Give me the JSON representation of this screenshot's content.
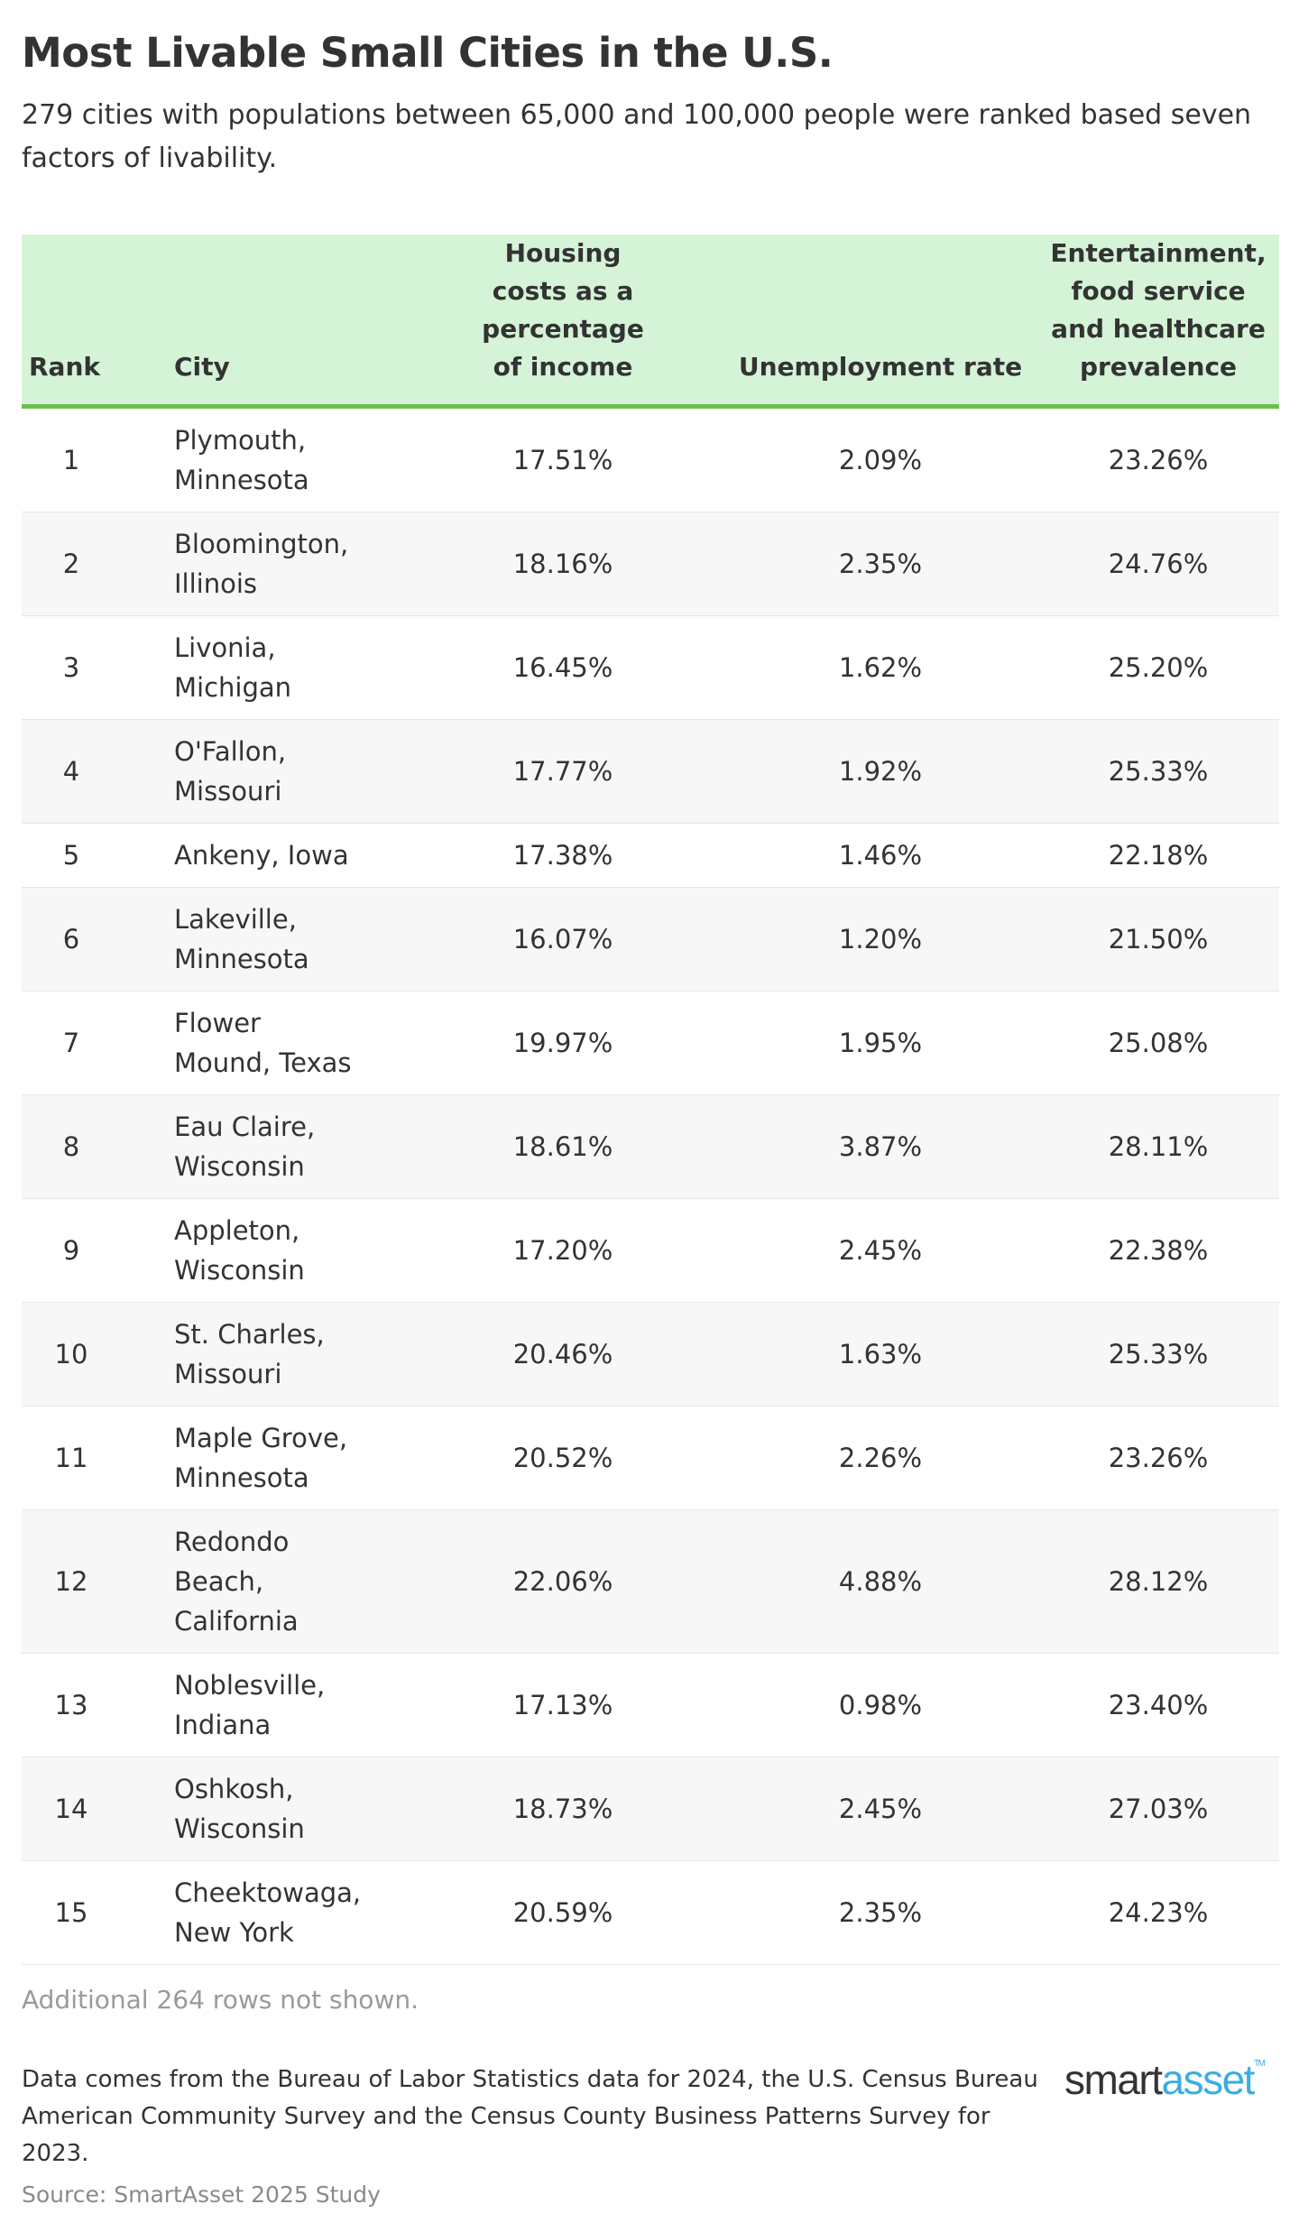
{
  "title": "Most Livable Small Cities in the U.S.",
  "subtitle": "279 cities with populations between 65,000 and 100,000 people were ranked based seven factors of livability.",
  "colors": {
    "header_bg": "#d5f3d6",
    "header_border": "#6cc04a",
    "logo_accent": "#3aaee0"
  },
  "chart_data": {
    "type": "table",
    "columns": [
      "Rank",
      "City",
      "Housing costs as a percentage of income",
      "Unemployment rate",
      "Entertainment, food service and healthcare prevalence"
    ],
    "rows": [
      [
        "1",
        "Plymouth, Minnesota",
        "17.51%",
        "2.09%",
        "23.26%"
      ],
      [
        "2",
        "Bloomington, Illinois",
        "18.16%",
        "2.35%",
        "24.76%"
      ],
      [
        "3",
        "Livonia, Michigan",
        "16.45%",
        "1.62%",
        "25.20%"
      ],
      [
        "4",
        "O'Fallon, Missouri",
        "17.77%",
        "1.92%",
        "25.33%"
      ],
      [
        "5",
        "Ankeny, Iowa",
        "17.38%",
        "1.46%",
        "22.18%"
      ],
      [
        "6",
        "Lakeville, Minnesota",
        "16.07%",
        "1.20%",
        "21.50%"
      ],
      [
        "7",
        "Flower Mound, Texas",
        "19.97%",
        "1.95%",
        "25.08%"
      ],
      [
        "8",
        "Eau Claire, Wisconsin",
        "18.61%",
        "3.87%",
        "28.11%"
      ],
      [
        "9",
        "Appleton, Wisconsin",
        "17.20%",
        "2.45%",
        "22.38%"
      ],
      [
        "10",
        "St. Charles, Missouri",
        "20.46%",
        "1.63%",
        "25.33%"
      ],
      [
        "11",
        "Maple Grove, Minnesota",
        "20.52%",
        "2.26%",
        "23.26%"
      ],
      [
        "12",
        "Redondo Beach, California",
        "22.06%",
        "4.88%",
        "28.12%"
      ],
      [
        "13",
        "Noblesville, Indiana",
        "17.13%",
        "0.98%",
        "23.40%"
      ],
      [
        "14",
        "Oshkosh, Wisconsin",
        "18.73%",
        "2.45%",
        "27.03%"
      ],
      [
        "15",
        "Cheektowaga, New York",
        "20.59%",
        "2.35%",
        "24.23%"
      ]
    ]
  },
  "note": "Additional 264 rows not shown.",
  "footer": "Data comes from the Bureau of Labor Statistics data for 2024, the U.S. Census Bureau American Community Survey and the Census County Business Patterns Survey for 2023.",
  "source": "Source: SmartAsset 2025 Study",
  "logo": {
    "part1": "smart",
    "part2": "asset",
    "tm": "TM"
  }
}
